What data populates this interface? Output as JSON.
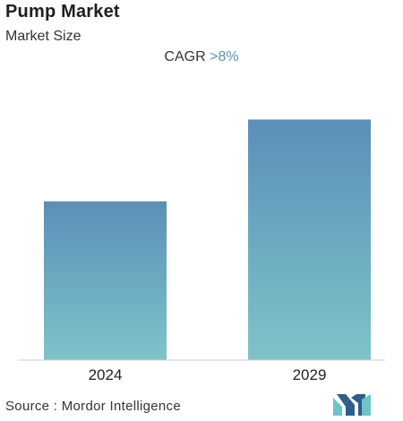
{
  "header": {
    "title": "Pump Market",
    "subtitle": "Market Size"
  },
  "cagr": {
    "label": "CAGR",
    "value": ">8%"
  },
  "footer": {
    "source": "Source :  Mordor Intelligence",
    "logo_icon": "mordor-intelligence-logo-icon"
  },
  "colors": {
    "bar_top": "#5b8fb8",
    "bar_bottom": "#7ec4c9",
    "cagr_accent": "#5b8fb8",
    "logo_dark": "#2d5f8a",
    "logo_light": "#6fc3c9"
  },
  "chart_data": {
    "type": "bar",
    "title": "Pump Market",
    "subtitle": "Market Size",
    "categories": [
      "2024",
      "2029"
    ],
    "values": [
      0.66,
      1.0
    ],
    "ylim": [
      0,
      1.05
    ],
    "value_note": "",
    "grid": false,
    "legend": "none"
  }
}
